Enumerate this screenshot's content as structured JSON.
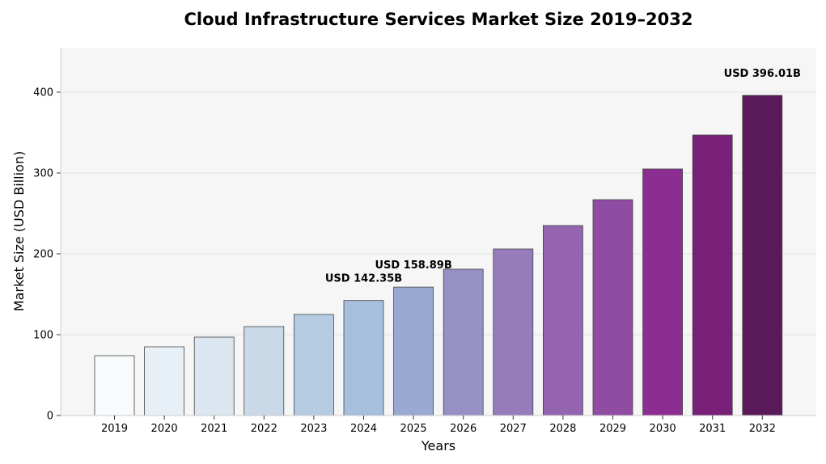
{
  "chart_data": {
    "type": "bar",
    "title": "Cloud Infrastructure Services Market Size 2019–2032",
    "xlabel": "Years",
    "ylabel": "Market Size (USD Billion)",
    "ylim": [
      0,
      455
    ],
    "yticks": [
      0,
      100,
      200,
      300,
      400
    ],
    "grid": true,
    "categories": [
      "2019",
      "2020",
      "2021",
      "2022",
      "2023",
      "2024",
      "2025",
      "2026",
      "2027",
      "2028",
      "2029",
      "2030",
      "2031",
      "2032"
    ],
    "values": [
      74,
      85,
      97,
      110,
      125,
      142.35,
      158.89,
      181,
      206,
      235,
      267,
      305,
      347,
      396.01
    ],
    "colors": [
      "#f7fbfd",
      "#e8f0f7",
      "#dbe6f1",
      "#c9d9e8",
      "#b6cce3",
      "#a6bfdd",
      "#9aa9d1",
      "#9690c4",
      "#967cbb",
      "#9464b0",
      "#904ca3",
      "#8c2e91",
      "#781f77",
      "#5a1a5a"
    ],
    "annotations": [
      {
        "category": "2024",
        "value": 142.35,
        "text": "USD 142.35B"
      },
      {
        "category": "2025",
        "value": 158.89,
        "text": "USD 158.89B"
      },
      {
        "category": "2032",
        "value": 396.01,
        "text": "USD 396.01B"
      }
    ]
  }
}
